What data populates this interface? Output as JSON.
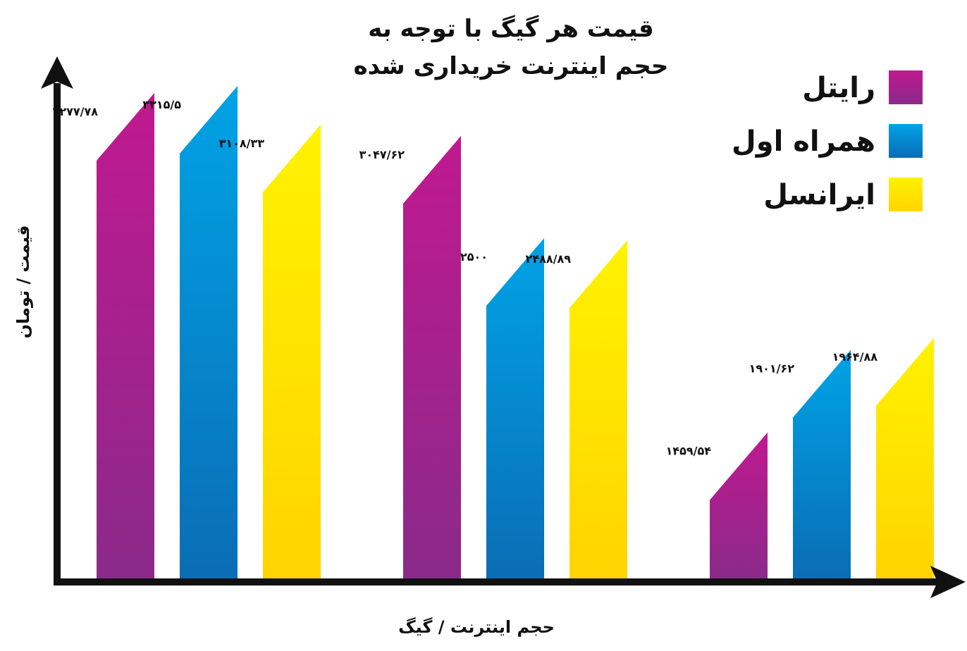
{
  "chart_data": {
    "type": "bar",
    "title_line1": "قیمت هر گیگ با توجه به",
    "title_line2": "حجم اینترنت خریداری شده",
    "xlabel": "حجم اینترنت / گیگ",
    "ylabel": "قیمت / تومان",
    "ylim": [
      900,
      3700
    ],
    "grid": false,
    "legend_position": "top-right",
    "series": [
      {
        "name": "رایتل",
        "values": [
          3277.78,
          3047.62,
          1459.54
        ],
        "labels": [
          "۳۲۷۷/۷۸",
          "۳۰۴۷/۶۲",
          "۱۴۵۹/۵۴"
        ],
        "color_top": "#c0198f",
        "color_bottom": "#8a2a8a"
      },
      {
        "name": "همراه اول",
        "values": [
          3315.5,
          2500,
          1901.62
        ],
        "labels": [
          "۳۳۱۵/۵",
          "۲۵۰۰",
          "۱۹۰۱/۶۲"
        ],
        "color_top": "#00a3e6",
        "color_bottom": "#0a6db5"
      },
      {
        "name": "ایرانسل",
        "values": [
          3108.33,
          2488.89,
          1964.88
        ],
        "labels": [
          "۳۱۰۸/۳۳",
          "۲۴۸۸/۸۹",
          "۱۹۶۴/۸۸"
        ],
        "color_top": "#fff200",
        "color_bottom": "#ffd400"
      }
    ]
  }
}
